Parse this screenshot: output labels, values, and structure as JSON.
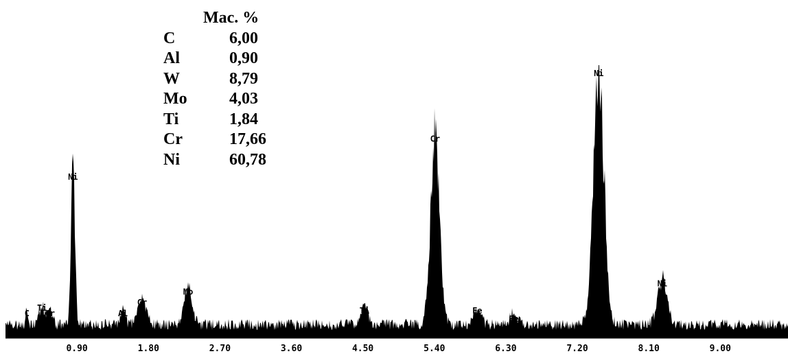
{
  "composition_table": {
    "header": "Мас. %",
    "rows": [
      {
        "element": "C",
        "value": "6,00"
      },
      {
        "element": "Al",
        "value": "0,90"
      },
      {
        "element": "W",
        "value": "8,79"
      },
      {
        "element": "Mo",
        "value": "4,03"
      },
      {
        "element": "Ti",
        "value": "1,84"
      },
      {
        "element": "Cr",
        "value": "17,66"
      },
      {
        "element": "Ni",
        "value": "60,78"
      }
    ]
  },
  "chart_data": {
    "type": "area",
    "title": "",
    "xlabel": "",
    "ylabel": "",
    "xlim": [
      0.0,
      9.9
    ],
    "ylim": [
      0,
      100
    ],
    "x_ticks": [
      0.9,
      1.8,
      2.7,
      3.6,
      4.5,
      5.4,
      6.3,
      7.2,
      8.1,
      9.0
    ],
    "x_tick_labels": [
      "0.90",
      "1.80",
      "2.70",
      "3.60",
      "4.50",
      "5.40",
      "6.30",
      "7.20",
      "8.10",
      "9.00"
    ],
    "grid": false,
    "fill_color": "#000000",
    "baseline_counts": 5,
    "peaks": [
      {
        "label": "C",
        "x": 0.27,
        "height": 6,
        "width": 0.015
      },
      {
        "label": "Ti",
        "x": 0.46,
        "height": 8,
        "width": 0.03
      },
      {
        "label": "Cr",
        "x": 0.56,
        "height": 6,
        "width": 0.03
      },
      {
        "label": "Ni",
        "x": 0.85,
        "height": 56,
        "width": 0.025
      },
      {
        "label": "Al",
        "x": 1.48,
        "height": 6,
        "width": 0.025
      },
      {
        "label": "Cr",
        "x": 1.72,
        "height": 10,
        "width": 0.05
      },
      {
        "label": "Mo",
        "x": 2.3,
        "height": 14,
        "width": 0.05
      },
      {
        "label": "Ti",
        "x": 4.52,
        "height": 7,
        "width": 0.045
      },
      {
        "label": "Cr",
        "x": 5.41,
        "height": 70,
        "width": 0.055
      },
      {
        "label": "Fe",
        "x": 5.94,
        "height": 7,
        "width": 0.045
      },
      {
        "label": "Fe",
        "x": 6.4,
        "height": 4,
        "width": 0.05
      },
      {
        "label": "Ni",
        "x": 7.47,
        "height": 94,
        "width": 0.065
      },
      {
        "label": "Ni",
        "x": 8.27,
        "height": 17,
        "width": 0.06
      }
    ]
  }
}
